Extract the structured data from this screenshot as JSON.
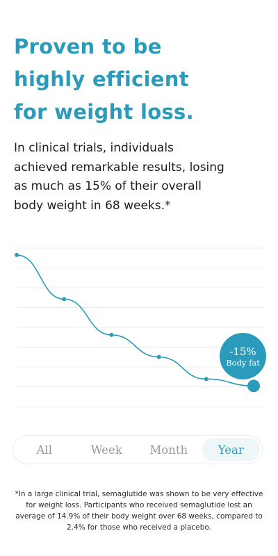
{
  "headline": {
    "lines": [
      "Proven to be",
      "highly efficient",
      "for weight loss."
    ]
  },
  "intro": {
    "lines": [
      "In clinical trials, individuals",
      "achieved remarkable results, losing",
      "as much as 15% of their overall",
      "body weight in 68 weeks.*"
    ]
  },
  "chart_data": {
    "type": "line",
    "x": [
      0,
      1,
      2,
      3,
      4,
      5
    ],
    "values": [
      0,
      -3.2,
      -5.8,
      -7.4,
      -9.0,
      -9.5
    ],
    "ylim": [
      -11,
      0.5
    ],
    "grid": true,
    "annotation": {
      "value": "-15%",
      "label": "Body fat"
    }
  },
  "tabs": {
    "items": [
      "All",
      "Week",
      "Month",
      "Year"
    ],
    "selected": "Year"
  },
  "footnote": {
    "lines": [
      "*In a large clinical trial, semaglutide was shown to be very effective",
      "for weight loss. Participants who received semaglutide lost an",
      "average of 14.9% of their body weight over 68 weeks, compared to",
      "2.4% for those who received a placebo."
    ]
  },
  "colors": {
    "accent": "#2a9bbb",
    "grid": "#ececec",
    "tab_active_bg": "#eef6f8"
  }
}
